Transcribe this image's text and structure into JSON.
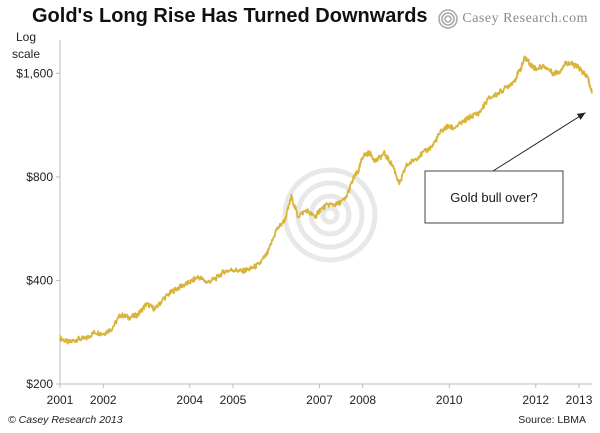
{
  "header": {
    "title": "Gold's Long Rise Has Turned Downwards",
    "brand_word1": "Casey",
    "brand_word2": "Research.com"
  },
  "footer": {
    "copyright": "© Casey Research 2013",
    "source": "Source: LBMA"
  },
  "colors": {
    "line": "#d9b43b",
    "axis": "#bcbcbc",
    "logo": "#aaaaaa"
  },
  "chart_data": {
    "type": "line",
    "title": "Gold's Long Rise Has Turned Downwards",
    "ylabel_lines": [
      "Log",
      "scale"
    ],
    "xlabel": "",
    "y_scale": "log",
    "ylim": [
      200,
      2000
    ],
    "xlim": [
      2001.0,
      2013.3
    ],
    "y_ticks": [
      200,
      400,
      800,
      1600
    ],
    "y_tick_labels": [
      "$200",
      "$400",
      "$800",
      "$1,600"
    ],
    "x_ticks": [
      2001,
      2002,
      2004,
      2005,
      2007,
      2008,
      2010,
      2012,
      2013
    ],
    "x_tick_labels": [
      "2001",
      "2002",
      "2004",
      "2005",
      "2007",
      "2008",
      "2010",
      "2012",
      "2013"
    ],
    "grid": false,
    "annotation": {
      "text": "Gold bull over?",
      "arrow_to": {
        "x": 2013.15,
        "y": 1230
      }
    },
    "series": [
      {
        "color": "#d9b43b",
        "x": [
          2001.0,
          2001.2,
          2001.4,
          2001.6,
          2001.8,
          2002.0,
          2002.2,
          2002.4,
          2002.6,
          2002.8,
          2003.0,
          2003.2,
          2003.4,
          2003.6,
          2003.8,
          2004.0,
          2004.2,
          2004.4,
          2004.6,
          2004.8,
          2005.0,
          2005.2,
          2005.4,
          2005.6,
          2005.8,
          2006.0,
          2006.2,
          2006.35,
          2006.5,
          2006.7,
          2006.9,
          2007.0,
          2007.2,
          2007.4,
          2007.6,
          2007.8,
          2007.9,
          2008.0,
          2008.15,
          2008.3,
          2008.5,
          2008.7,
          2008.85,
          2009.0,
          2009.2,
          2009.4,
          2009.6,
          2009.8,
          2009.95,
          2010.1,
          2010.3,
          2010.5,
          2010.7,
          2010.9,
          2011.1,
          2011.3,
          2011.5,
          2011.65,
          2011.75,
          2011.9,
          2012.0,
          2012.2,
          2012.4,
          2012.55,
          2012.7,
          2012.85,
          2013.0,
          2013.1,
          2013.2,
          2013.3
        ],
        "values": [
          272,
          264,
          270,
          271,
          283,
          280,
          290,
          318,
          312,
          318,
          342,
          330,
          355,
          372,
          385,
          395,
          410,
          395,
          405,
          425,
          430,
          425,
          432,
          445,
          480,
          560,
          600,
          700,
          615,
          640,
          610,
          640,
          665,
          665,
          690,
          800,
          830,
          920,
          940,
          890,
          935,
          860,
          760,
          860,
          900,
          940,
          980,
          1080,
          1120,
          1110,
          1150,
          1200,
          1230,
          1350,
          1390,
          1450,
          1520,
          1650,
          1780,
          1690,
          1650,
          1680,
          1600,
          1620,
          1720,
          1700,
          1660,
          1600,
          1560,
          1400
        ]
      }
    ]
  }
}
